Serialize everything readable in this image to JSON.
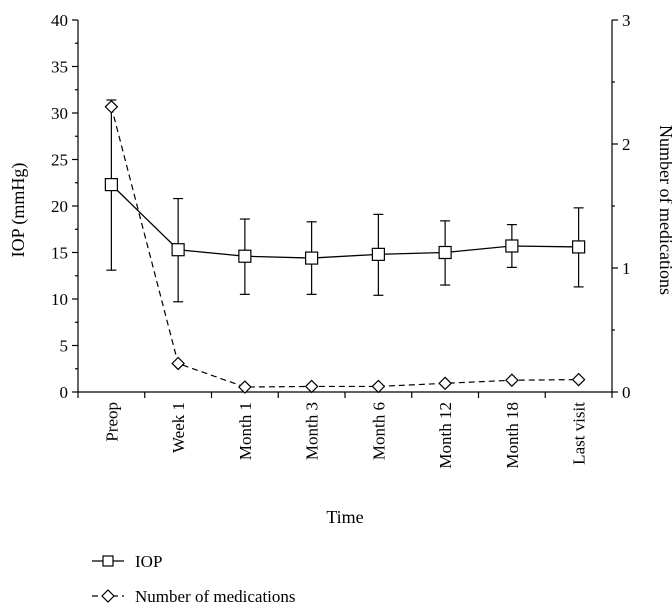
{
  "chart_data": {
    "type": "line",
    "xlabel": "Time",
    "ylabel_left": "IOP (mmHg)",
    "ylabel_right": "Number of medications",
    "categories": [
      "Preop",
      "Week 1",
      "Month 1",
      "Month 3",
      "Month 6",
      "Month 12",
      "Month 18",
      "Last visit"
    ],
    "ylim_left": [
      0,
      40
    ],
    "yticks_left": [
      "0",
      "5",
      "10",
      "15",
      "20",
      "25",
      "30",
      "35",
      "40"
    ],
    "ylim_right": [
      0,
      3
    ],
    "yticks_right": [
      "0",
      "1",
      "2",
      "3"
    ],
    "grid": false,
    "legend_position": "bottom-left",
    "series": [
      {
        "name": "IOP",
        "axis": "left",
        "marker": "square",
        "line_style": "solid",
        "values": [
          22.3,
          15.3,
          14.6,
          14.4,
          14.8,
          15.0,
          15.7,
          15.6
        ],
        "error_low": [
          13.1,
          9.7,
          10.5,
          10.5,
          10.4,
          11.5,
          13.4,
          11.3
        ],
        "error_high": [
          31.4,
          20.8,
          18.6,
          18.3,
          19.1,
          18.4,
          18.0,
          19.8
        ]
      },
      {
        "name": "Number of medications",
        "axis": "right",
        "marker": "diamond",
        "line_style": "dashed",
        "values": [
          2.3,
          0.23,
          0.04,
          0.045,
          0.045,
          0.07,
          0.095,
          0.1
        ]
      }
    ]
  }
}
